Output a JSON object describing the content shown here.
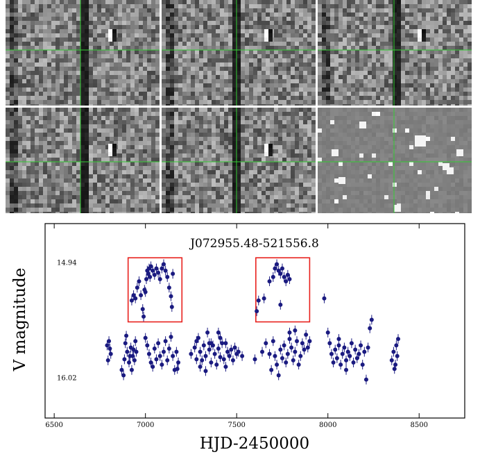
{
  "cutout_grid": {
    "rows": 2,
    "cols": 3,
    "panels": [
      {
        "id": "p1",
        "has_dark_column": true,
        "variant": "gray"
      },
      {
        "id": "p2",
        "has_dark_column": true,
        "variant": "gray"
      },
      {
        "id": "p3",
        "has_dark_column": true,
        "variant": "gray"
      },
      {
        "id": "p4",
        "has_dark_column": true,
        "variant": "gray"
      },
      {
        "id": "p5",
        "has_dark_column": true,
        "variant": "gray"
      },
      {
        "id": "p6",
        "has_dark_column": false,
        "variant": "smooth"
      }
    ],
    "crosshair_color": "#33cc33"
  },
  "chart_data": {
    "type": "scatter",
    "title": "J072955.48-521556.8",
    "xlabel": "HJD-2450000",
    "ylabel": "V magnitude",
    "xlim": [
      6450,
      8750
    ],
    "ylim": [
      16.4,
      14.58
    ],
    "x_ticks": [
      6500,
      7000,
      7500,
      8000,
      8500
    ],
    "y_tick_labels": [
      {
        "value": 14.94,
        "label": "14.94"
      },
      {
        "value": 16.02,
        "label": "16.02"
      }
    ],
    "grid": false,
    "marker_color": "#1a1a80",
    "highlight_color": "#e8201c",
    "highlight_boxes": [
      {
        "x": [
          6905,
          7200
        ],
        "y": [
          14.9,
          15.5
        ]
      },
      {
        "x": [
          7605,
          7900
        ],
        "y": [
          14.9,
          15.5
        ]
      }
    ],
    "series": [
      {
        "points": [
          [
            6790,
            15.72
          ],
          [
            6800,
            15.68
          ],
          [
            6810,
            15.8
          ],
          [
            6795,
            15.86
          ],
          [
            6805,
            15.75
          ],
          [
            6870,
            15.95
          ],
          [
            6880,
            16.0
          ],
          [
            6885,
            15.85
          ],
          [
            6890,
            15.7
          ],
          [
            6895,
            15.63
          ],
          [
            6900,
            15.78
          ],
          [
            6910,
            15.88
          ],
          [
            6915,
            15.82
          ],
          [
            6920,
            15.74
          ],
          [
            6925,
            15.95
          ],
          [
            6930,
            15.82
          ],
          [
            6935,
            15.76
          ],
          [
            6940,
            15.86
          ],
          [
            6945,
            15.68
          ],
          [
            6950,
            15.78
          ],
          [
            6925,
            15.3
          ],
          [
            6935,
            15.25
          ],
          [
            6945,
            15.28
          ],
          [
            6955,
            15.18
          ],
          [
            6965,
            15.12
          ],
          [
            6975,
            15.25
          ],
          [
            6985,
            15.38
          ],
          [
            6990,
            15.45
          ],
          [
            6995,
            15.2
          ],
          [
            7000,
            15.22
          ],
          [
            7005,
            15.1
          ],
          [
            7010,
            15.02
          ],
          [
            7015,
            15.05
          ],
          [
            7020,
            15.0
          ],
          [
            7025,
            15.08
          ],
          [
            7030,
            14.98
          ],
          [
            7040,
            15.02
          ],
          [
            7050,
            15.06
          ],
          [
            7060,
            15.0
          ],
          [
            7070,
            15.04
          ],
          [
            7080,
            15.1
          ],
          [
            7090,
            15.0
          ],
          [
            7100,
            14.96
          ],
          [
            7110,
            15.02
          ],
          [
            7120,
            15.08
          ],
          [
            7130,
            15.18
          ],
          [
            7140,
            15.26
          ],
          [
            7150,
            15.05
          ],
          [
            7145,
            15.36
          ],
          [
            7000,
            15.65
          ],
          [
            7010,
            15.72
          ],
          [
            7020,
            15.8
          ],
          [
            7030,
            15.88
          ],
          [
            7040,
            15.92
          ],
          [
            7050,
            15.75
          ],
          [
            7060,
            15.85
          ],
          [
            7070,
            15.7
          ],
          [
            7080,
            15.82
          ],
          [
            7090,
            15.9
          ],
          [
            7100,
            15.78
          ],
          [
            7110,
            15.68
          ],
          [
            7120,
            15.86
          ],
          [
            7130,
            15.75
          ],
          [
            7140,
            15.64
          ],
          [
            7150,
            15.82
          ],
          [
            7160,
            15.95
          ],
          [
            7170,
            15.78
          ],
          [
            7180,
            15.88
          ],
          [
            7175,
            15.94
          ],
          [
            7250,
            15.8
          ],
          [
            7270,
            15.74
          ],
          [
            7280,
            15.85
          ],
          [
            7290,
            15.65
          ],
          [
            7300,
            15.78
          ],
          [
            7310,
            15.86
          ],
          [
            7320,
            15.72
          ],
          [
            7330,
            15.82
          ],
          [
            7340,
            15.6
          ],
          [
            7350,
            15.76
          ],
          [
            7360,
            15.88
          ],
          [
            7370,
            15.72
          ],
          [
            7380,
            15.8
          ],
          [
            7390,
            15.9
          ],
          [
            7400,
            15.75
          ],
          [
            7410,
            15.83
          ],
          [
            7420,
            15.7
          ],
          [
            7430,
            15.85
          ],
          [
            7440,
            15.92
          ],
          [
            7450,
            15.78
          ],
          [
            7400,
            15.6
          ],
          [
            7410,
            15.65
          ],
          [
            7350,
            15.7
          ],
          [
            7460,
            15.82
          ],
          [
            7470,
            15.76
          ],
          [
            7480,
            15.86
          ],
          [
            7490,
            15.74
          ],
          [
            7500,
            15.8
          ],
          [
            7510,
            15.78
          ],
          [
            7530,
            15.82
          ],
          [
            7280,
            15.68
          ],
          [
            7300,
            15.92
          ],
          [
            7330,
            15.96
          ],
          [
            7360,
            15.7
          ],
          [
            7440,
            15.7
          ],
          [
            7610,
            15.4
          ],
          [
            7620,
            15.3
          ],
          [
            7650,
            15.28
          ],
          [
            7680,
            15.12
          ],
          [
            7700,
            15.08
          ],
          [
            7710,
            15.0
          ],
          [
            7720,
            14.96
          ],
          [
            7730,
            15.02
          ],
          [
            7740,
            15.05
          ],
          [
            7750,
            15.0
          ],
          [
            7760,
            15.08
          ],
          [
            7770,
            15.12
          ],
          [
            7780,
            15.06
          ],
          [
            7790,
            15.1
          ],
          [
            7740,
            15.34
          ],
          [
            7600,
            15.85
          ],
          [
            7640,
            15.78
          ],
          [
            7660,
            15.7
          ],
          [
            7680,
            15.8
          ],
          [
            7690,
            15.95
          ],
          [
            7700,
            15.68
          ],
          [
            7710,
            15.82
          ],
          [
            7720,
            15.9
          ],
          [
            7730,
            16.0
          ],
          [
            7740,
            15.76
          ],
          [
            7750,
            15.84
          ],
          [
            7760,
            15.72
          ],
          [
            7770,
            15.88
          ],
          [
            7780,
            15.8
          ],
          [
            7790,
            15.66
          ],
          [
            7800,
            15.74
          ],
          [
            7810,
            15.86
          ],
          [
            7820,
            15.78
          ],
          [
            7830,
            15.68
          ],
          [
            7840,
            15.9
          ],
          [
            7850,
            15.82
          ],
          [
            7860,
            15.7
          ],
          [
            7870,
            15.76
          ],
          [
            7880,
            15.62
          ],
          [
            7890,
            15.74
          ],
          [
            7820,
            15.58
          ],
          [
            7790,
            15.6
          ],
          [
            7900,
            15.68
          ],
          [
            7980,
            15.28
          ],
          [
            8000,
            15.6
          ],
          [
            8010,
            15.7
          ],
          [
            8020,
            15.8
          ],
          [
            8030,
            15.88
          ],
          [
            8040,
            15.76
          ],
          [
            8050,
            15.84
          ],
          [
            8060,
            15.72
          ],
          [
            8070,
            15.9
          ],
          [
            8080,
            15.8
          ],
          [
            8090,
            15.74
          ],
          [
            8100,
            15.86
          ],
          [
            8110,
            15.78
          ],
          [
            8120,
            15.82
          ],
          [
            8130,
            15.7
          ],
          [
            8140,
            15.88
          ],
          [
            8150,
            15.76
          ],
          [
            8160,
            15.84
          ],
          [
            8170,
            15.8
          ],
          [
            8180,
            15.72
          ],
          [
            8190,
            15.9
          ],
          [
            8200,
            15.78
          ],
          [
            8210,
            16.04
          ],
          [
            8220,
            15.74
          ],
          [
            8230,
            15.56
          ],
          [
            8240,
            15.48
          ],
          [
            8060,
            15.66
          ],
          [
            8100,
            15.95
          ],
          [
            8350,
            15.86
          ],
          [
            8360,
            15.78
          ],
          [
            8370,
            15.9
          ],
          [
            8375,
            15.72
          ],
          [
            8380,
            15.82
          ],
          [
            8385,
            15.66
          ],
          [
            8365,
            15.94
          ]
        ]
      }
    ]
  }
}
